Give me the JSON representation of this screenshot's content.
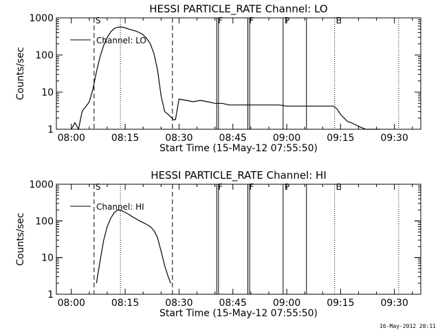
{
  "footer": {
    "stamp": "16-May-2012 20:11"
  },
  "chart_data": [
    {
      "type": "line",
      "title": "HESSI PARTICLE_RATE Channel: LO",
      "xlabel": "Start Time (15-May-12 07:55:50)",
      "ylabel": "Counts/sec",
      "yscale": "log",
      "ylim": [
        1,
        1000
      ],
      "xlim": [
        "07:55:50",
        "09:37:20"
      ],
      "x_tick_labels": [
        "08:00",
        "08:15",
        "08:30",
        "08:45",
        "09:00",
        "09:15",
        "09:30"
      ],
      "y_tick_labels": [
        "1",
        "10",
        "100",
        "1000"
      ],
      "legend": {
        "position": "top-left",
        "entries": [
          "Channel: LO"
        ]
      },
      "grid": false,
      "series": [
        {
          "name": "Channel: LO",
          "x": [
            "08:00:00",
            "08:01:00",
            "08:02:00",
            "08:03:00",
            "08:03:30",
            "08:04:00",
            "08:05:00",
            "08:06:00",
            "08:07:00",
            "08:08:00",
            "08:09:00",
            "08:10:00",
            "08:11:00",
            "08:12:00",
            "08:13:00",
            "08:14:00",
            "08:15:00",
            "08:16:00",
            "08:17:00",
            "08:18:00",
            "08:19:00",
            "08:20:00",
            "08:21:00",
            "08:22:00",
            "08:23:00",
            "08:24:00",
            "08:25:00",
            "08:26:00",
            "08:27:00",
            "08:28:00",
            "08:28:30",
            "08:29:00",
            "08:30:00",
            "08:32:00",
            "08:34:00",
            "08:36:00",
            "08:38:00",
            "08:40:00",
            "08:42:00",
            "08:44:00",
            "08:46:00",
            "08:48:00",
            "08:50:00",
            "08:52:00",
            "08:54:00",
            "08:56:00",
            "08:58:00",
            "09:00:00",
            "09:02:00",
            "09:04:00",
            "09:06:00",
            "09:08:00",
            "09:10:00",
            "09:12:00",
            "09:13:00",
            "09:14:00",
            "09:15:00",
            "09:16:00",
            "09:17:00",
            "09:18:00",
            "09:20:00",
            "09:22:00",
            "09:24:00",
            "09:26:00"
          ],
          "y": [
            1,
            1.5,
            1,
            3,
            3.5,
            4,
            5.5,
            12,
            35,
            90,
            180,
            300,
            420,
            520,
            560,
            570,
            540,
            500,
            470,
            440,
            400,
            350,
            280,
            200,
            110,
            40,
            8,
            3,
            2.5,
            2,
            1.8,
            1.8,
            6.5,
            6,
            5.5,
            6,
            5.5,
            5,
            5,
            4.5,
            4.5,
            4.5,
            4.5,
            4.5,
            4.5,
            4.5,
            4.5,
            4.2,
            4.2,
            4.2,
            4.2,
            4.2,
            4.2,
            4.2,
            4.2,
            3.5,
            2.5,
            2,
            1.6,
            1.5,
            1.2,
            1,
            1,
            1
          ]
        }
      ],
      "vertical_markers": [
        {
          "time": "08:06:20",
          "style": "dashed",
          "label": "S"
        },
        {
          "time": "08:13:40",
          "style": "dotted",
          "label": ""
        },
        {
          "time": "08:28:10",
          "style": "dashed",
          "label": ""
        },
        {
          "time": "08:40:30",
          "style": "solid",
          "label": "F"
        },
        {
          "time": "08:41:00",
          "style": "solid",
          "label": ""
        },
        {
          "time": "08:49:10",
          "style": "solid",
          "label": "F"
        },
        {
          "time": "08:49:40",
          "style": "solid",
          "label": ""
        },
        {
          "time": "08:59:00",
          "style": "solid",
          "label": "P"
        },
        {
          "time": "09:05:30",
          "style": "solid",
          "label": ""
        },
        {
          "time": "09:13:20",
          "style": "dotted",
          "label": "E"
        },
        {
          "time": "09:31:10",
          "style": "dotted",
          "label": ""
        }
      ]
    },
    {
      "type": "line",
      "title": "HESSI PARTICLE_RATE Channel: HI",
      "xlabel": "Start Time (15-May-12 07:55:50)",
      "ylabel": "Counts/sec",
      "yscale": "log",
      "ylim": [
        1,
        1000
      ],
      "xlim": [
        "07:55:50",
        "09:37:20"
      ],
      "x_tick_labels": [
        "08:00",
        "08:15",
        "08:30",
        "08:45",
        "09:00",
        "09:15",
        "09:30"
      ],
      "y_tick_labels": [
        "1",
        "10",
        "100",
        "1000"
      ],
      "legend": {
        "position": "top-left",
        "entries": [
          "Channel: HI"
        ]
      },
      "grid": false,
      "series": [
        {
          "name": "Channel: HI",
          "x": [
            "08:07:00",
            "08:08:00",
            "08:09:00",
            "08:10:00",
            "08:11:00",
            "08:12:00",
            "08:13:00",
            "08:14:00",
            "08:15:00",
            "08:16:00",
            "08:17:00",
            "08:18:00",
            "08:19:00",
            "08:20:00",
            "08:21:00",
            "08:22:00",
            "08:23:00",
            "08:24:00",
            "08:25:00",
            "08:26:00",
            "08:27:00",
            "08:27:40"
          ],
          "y": [
            2,
            8,
            30,
            70,
            120,
            170,
            200,
            190,
            170,
            150,
            130,
            115,
            100,
            90,
            80,
            70,
            55,
            35,
            15,
            6,
            3,
            2
          ]
        }
      ],
      "vertical_markers": [
        {
          "time": "08:06:20",
          "style": "dashed",
          "label": "S"
        },
        {
          "time": "08:13:40",
          "style": "dotted",
          "label": ""
        },
        {
          "time": "08:28:10",
          "style": "dashed",
          "label": ""
        },
        {
          "time": "08:40:30",
          "style": "solid",
          "label": "F"
        },
        {
          "time": "08:41:00",
          "style": "solid",
          "label": ""
        },
        {
          "time": "08:49:10",
          "style": "solid",
          "label": "F"
        },
        {
          "time": "08:49:40",
          "style": "solid",
          "label": ""
        },
        {
          "time": "08:59:00",
          "style": "solid",
          "label": "P"
        },
        {
          "time": "09:05:30",
          "style": "solid",
          "label": ""
        },
        {
          "time": "09:13:20",
          "style": "dotted",
          "label": "E"
        },
        {
          "time": "09:31:10",
          "style": "dotted",
          "label": ""
        }
      ]
    }
  ]
}
